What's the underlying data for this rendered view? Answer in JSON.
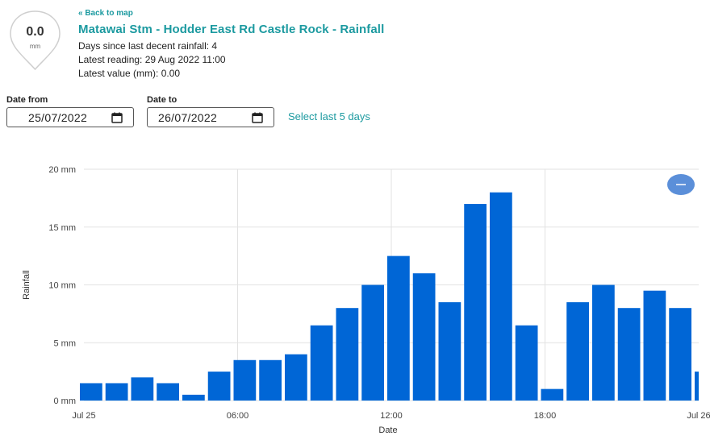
{
  "badge": {
    "value": "0.0",
    "unit": "mm"
  },
  "header": {
    "back_link": "« Back to map",
    "title": "Matawai Stm - Hodder East Rd Castle Rock - Rainfall",
    "days_since_label": "Days since last decent rainfall:",
    "days_since_value": "4",
    "latest_reading_label": "Latest reading:",
    "latest_reading_value": "29 Aug 2022 11:00",
    "latest_value_label": "Latest value (mm):",
    "latest_value_value": "0.00"
  },
  "filters": {
    "date_from_label": "Date from",
    "date_from_value": "25/07/2022",
    "date_to_label": "Date to",
    "date_to_value": "26/07/2022",
    "select_last_label": "Select last 5 days"
  },
  "icons": {
    "calendar": "calendar-icon",
    "zoom_out": "minus-icon",
    "badge": "map-marker-icon"
  },
  "colors": {
    "accent": "#1c9aa0",
    "bar": "#0066d6",
    "zoom_button": "#5b8fd9"
  },
  "chart_data": {
    "type": "bar",
    "x": [
      "2022-07-25 00:00",
      "2022-07-25 01:00",
      "2022-07-25 02:00",
      "2022-07-25 03:00",
      "2022-07-25 04:00",
      "2022-07-25 05:00",
      "2022-07-25 06:00",
      "2022-07-25 07:00",
      "2022-07-25 08:00",
      "2022-07-25 09:00",
      "2022-07-25 10:00",
      "2022-07-25 11:00",
      "2022-07-25 12:00",
      "2022-07-25 13:00",
      "2022-07-25 14:00",
      "2022-07-25 15:00",
      "2022-07-25 16:00",
      "2022-07-25 17:00",
      "2022-07-25 18:00",
      "2022-07-25 19:00",
      "2022-07-25 20:00",
      "2022-07-25 21:00",
      "2022-07-25 22:00",
      "2022-07-25 23:00",
      "2022-07-26 00:00"
    ],
    "values": [
      1.5,
      1.5,
      2.0,
      1.5,
      0.5,
      2.5,
      3.5,
      3.5,
      4.0,
      6.5,
      8.0,
      10.0,
      12.5,
      11.0,
      8.5,
      17.0,
      18.0,
      6.5,
      1.0,
      8.5,
      10.0,
      8.0,
      9.5,
      8.0,
      2.5
    ],
    "xlabel": "Date",
    "ylabel": "Rainfall",
    "ylim": [
      0,
      20
    ],
    "y_ticks": [
      0,
      5,
      10,
      15,
      20
    ],
    "y_tick_labels": [
      "0 mm",
      "5 mm",
      "10 mm",
      "15 mm",
      "20 mm"
    ],
    "x_ticks": [
      "Jul 25",
      "06:00",
      "12:00",
      "18:00",
      "Jul 26"
    ],
    "x_tick_hours": [
      0,
      6,
      12,
      18,
      24
    ],
    "grid": true,
    "legend": "none",
    "bar_color": "#0066d6"
  }
}
